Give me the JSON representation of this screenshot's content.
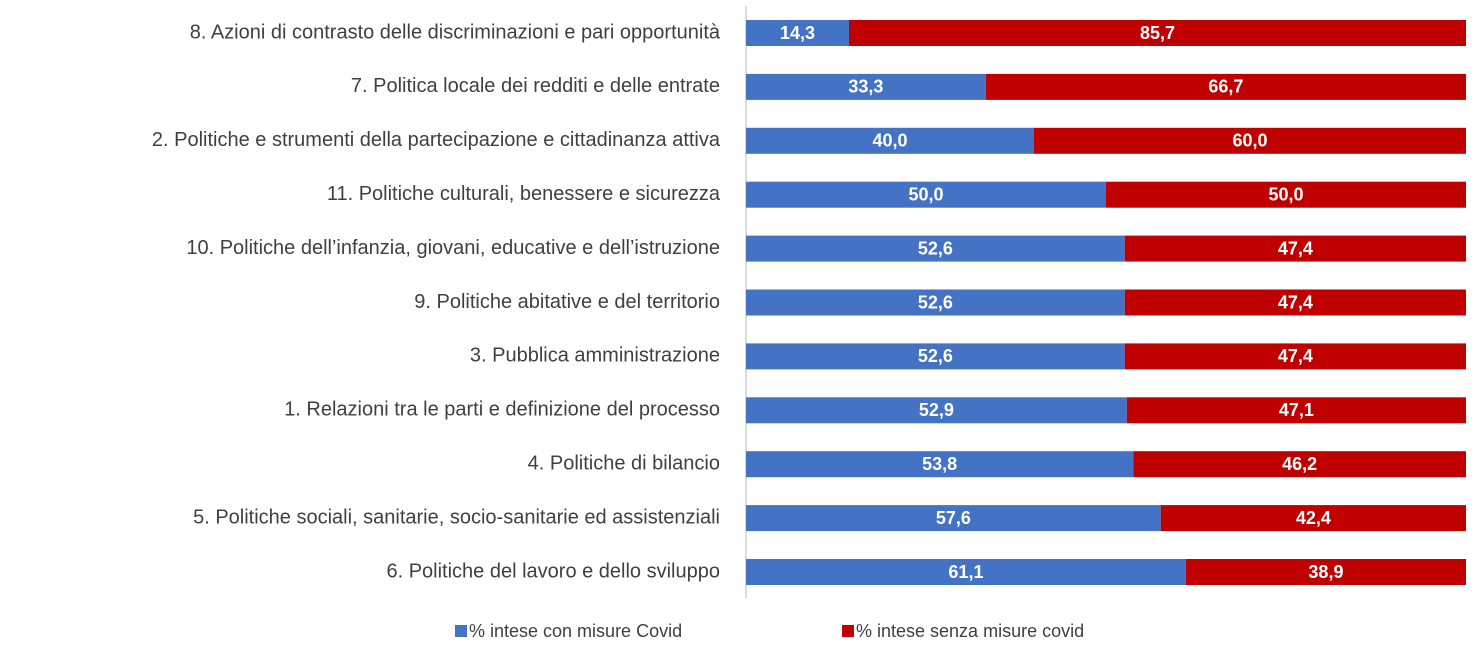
{
  "chart_data": {
    "type": "stacked-bar-horizontal",
    "categories": [
      "8. Azioni di contrasto delle discriminazioni e pari opportunità",
      "7. Politica locale dei redditi e delle entrate",
      "2. Politiche e strumenti della partecipazione e cittadinanza attiva",
      "11. Politiche culturali, benessere e sicurezza",
      "10. Politiche dell’infanzia, giovani, educative e dell’istruzione",
      "9. Politiche abitative e del territorio",
      "3. Pubblica amministrazione",
      "1. Relazioni tra le parti e definizione del processo",
      "4. Politiche di bilancio",
      "5. Politiche sociali, sanitarie, socio-sanitarie ed assistenziali",
      "6. Politiche del lavoro e dello sviluppo"
    ],
    "series": [
      {
        "name": "% intese con misure Covid",
        "color": "#4472c4",
        "values": [
          14.3,
          33.3,
          40.0,
          50.0,
          52.6,
          52.6,
          52.6,
          52.9,
          53.8,
          57.6,
          61.1
        ],
        "value_labels": [
          "14,3",
          "33,3",
          "40,0",
          "50,0",
          "52,6",
          "52,6",
          "52,6",
          "52,9",
          "53,8",
          "57,6",
          "61,1"
        ]
      },
      {
        "name": "% intese senza misure covid",
        "color": "#c00000",
        "values": [
          85.7,
          66.7,
          60.0,
          50.0,
          47.4,
          47.4,
          47.4,
          47.1,
          46.2,
          42.4,
          38.9
        ],
        "value_labels": [
          "85,7",
          "66,7",
          "60,0",
          "50,0",
          "47,4",
          "47,4",
          "47,4",
          "47,1",
          "46,2",
          "42,4",
          "38,9"
        ]
      }
    ],
    "legend": "bottom"
  }
}
